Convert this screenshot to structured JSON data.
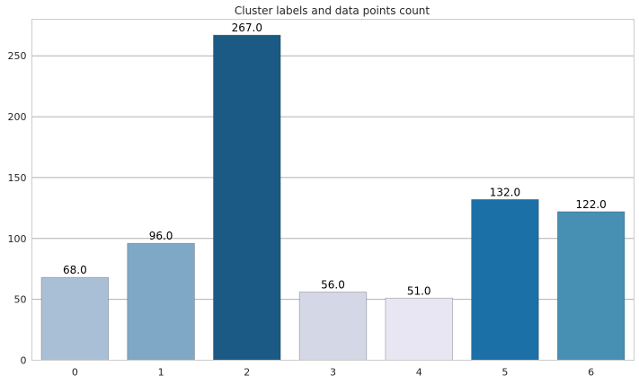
{
  "chart_data": {
    "type": "bar",
    "title": "Cluster labels and data points count",
    "xlabel": "",
    "ylabel": "",
    "categories": [
      "0",
      "1",
      "2",
      "3",
      "4",
      "5",
      "6"
    ],
    "values": [
      68,
      96,
      267,
      56,
      51,
      132,
      122
    ],
    "data_labels": [
      "68.0",
      "96.0",
      "267.0",
      "56.0",
      "51.0",
      "132.0",
      "122.0"
    ],
    "colors": [
      "#a9bfd6",
      "#7fa8c6",
      "#1a5a84",
      "#d4d7e6",
      "#e8e6f2",
      "#1b70a7",
      "#478fb3"
    ],
    "ylim": [
      0,
      280
    ],
    "yticks": [
      0,
      50,
      100,
      150,
      200,
      250
    ],
    "grid": true,
    "legend": "none"
  }
}
